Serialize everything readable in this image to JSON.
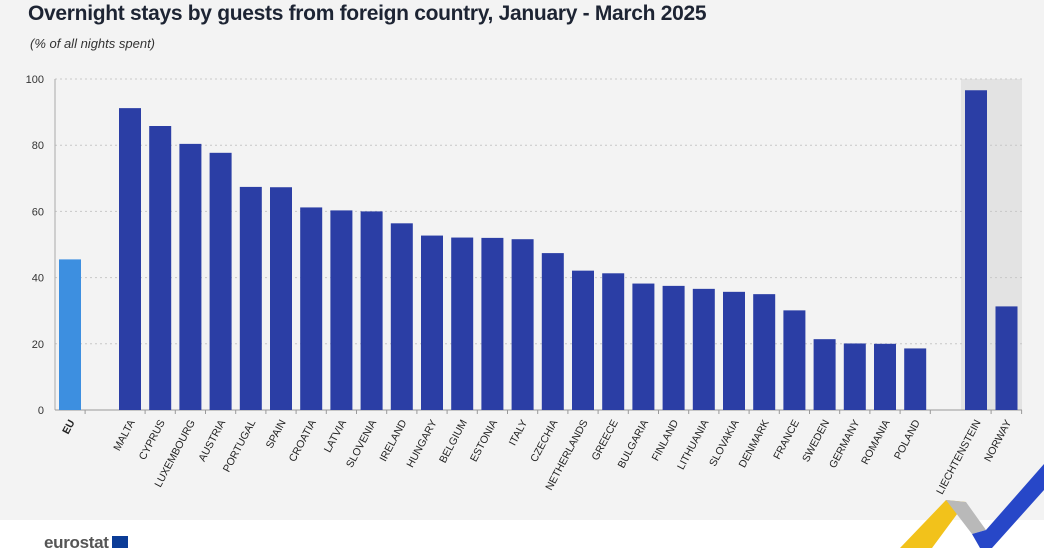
{
  "title": "Overnight stays by guests from foreign country, January - March 2025",
  "subtitle": "(% of all nights spent)",
  "logo": "eurostat",
  "colors": {
    "eu_bar": "#3d8fe0",
    "bar": "#2b3ea5",
    "highlight_band": "#e3e3e3",
    "grid": "#c8c8c8"
  },
  "chart_data": {
    "type": "bar",
    "title": "Overnight stays by guests from foreign country, January - March 2025",
    "ylabel": "(% of all nights spent)",
    "ylim": [
      0,
      100
    ],
    "yticks": [
      0,
      20,
      40,
      60,
      80,
      100
    ],
    "grid": true,
    "categories": [
      "EU",
      "MALTA",
      "CYPRUS",
      "LUXEMBOURG",
      "AUSTRIA",
      "PORTUGAL",
      "SPAIN",
      "CROATIA",
      "LATVIA",
      "SLOVENIA",
      "IRELAND",
      "HUNGARY",
      "BELGIUM",
      "ESTONIA",
      "ITALY",
      "CZECHIA",
      "NETHERLANDS",
      "GREECE",
      "BULGARIA",
      "FINLAND",
      "LITHUANIA",
      "SLOVAKIA",
      "DENMARK",
      "FRANCE",
      "SWEDEN",
      "GERMANY",
      "ROMANIA",
      "POLAND",
      "LIECHTENSTEIN",
      "NORWAY"
    ],
    "values": [
      45.5,
      91.2,
      85.8,
      80.4,
      77.7,
      67.4,
      67.3,
      61.2,
      60.3,
      60.0,
      56.4,
      52.7,
      52.1,
      52.0,
      51.6,
      47.4,
      42.1,
      41.3,
      38.2,
      37.5,
      36.6,
      35.7,
      35.0,
      30.1,
      21.4,
      20.1,
      20.0,
      18.6,
      96.6,
      31.3
    ],
    "groups": [
      "eu",
      "member",
      "member",
      "member",
      "member",
      "member",
      "member",
      "member",
      "member",
      "member",
      "member",
      "member",
      "member",
      "member",
      "member",
      "member",
      "member",
      "member",
      "member",
      "member",
      "member",
      "member",
      "member",
      "member",
      "member",
      "member",
      "member",
      "member",
      "efta",
      "efta"
    ]
  }
}
